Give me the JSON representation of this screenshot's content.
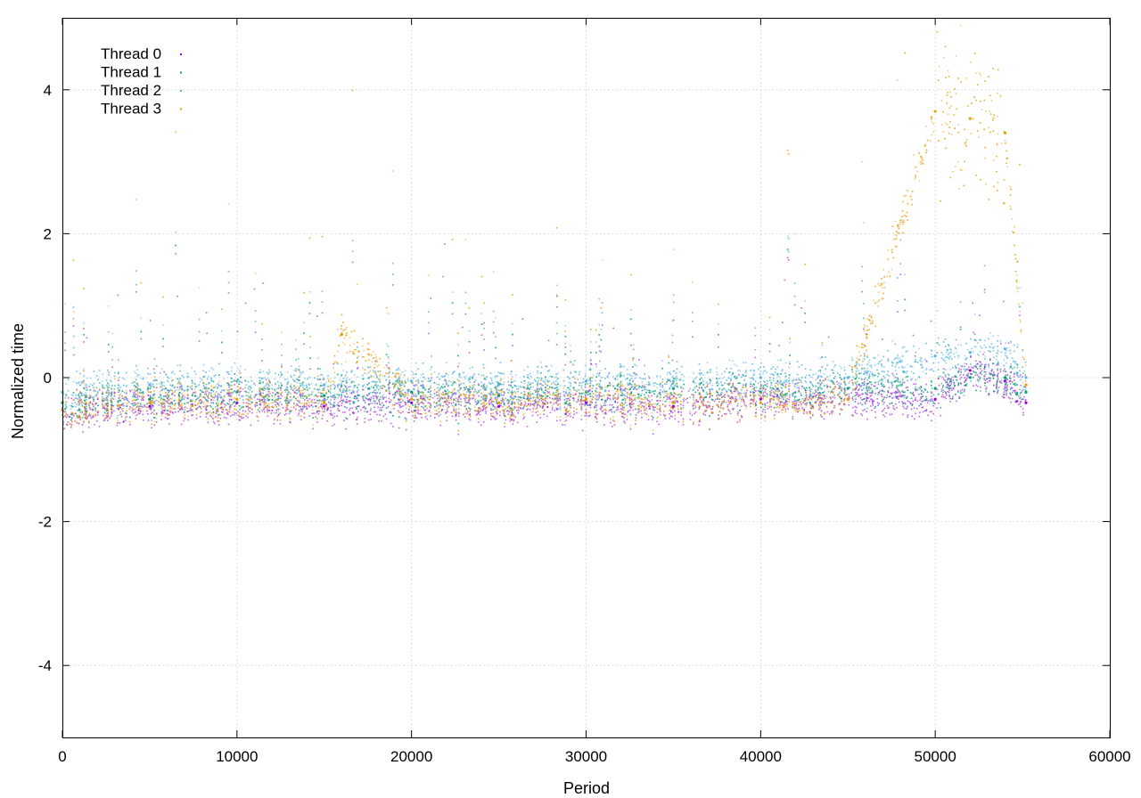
{
  "chart_data": {
    "type": "scatter",
    "title": "",
    "xlabel": "Period",
    "ylabel": "Normalized time",
    "xlim": [
      0,
      60000
    ],
    "ylim": [
      -5,
      5
    ],
    "xticks": [
      0,
      10000,
      20000,
      30000,
      40000,
      50000,
      60000
    ],
    "yticks": [
      -4,
      -2,
      0,
      2,
      4
    ],
    "xtick_labels": [
      "0",
      "10000",
      "20000",
      "30000",
      "40000",
      "50000",
      "60000"
    ],
    "ytick_labels": [
      "-4",
      "-2",
      "0",
      "2",
      "4"
    ],
    "grid": true,
    "legend_position": "top-left",
    "series": [
      {
        "name": "Thread 0",
        "color": "#9400d3",
        "x": [
          0,
          5000,
          10000,
          15000,
          20000,
          25000,
          30000,
          35000,
          40000,
          45000,
          50000,
          52000,
          54000,
          55200
        ],
        "y": [
          -0.45,
          -0.4,
          -0.35,
          -0.4,
          -0.35,
          -0.4,
          -0.35,
          -0.4,
          -0.3,
          -0.3,
          -0.3,
          0.1,
          -0.05,
          -0.35
        ]
      },
      {
        "name": "Thread 1",
        "color": "#009e73",
        "x": [
          0,
          5000,
          10000,
          15000,
          20000,
          25000,
          30000,
          35000,
          40000,
          45000,
          50000,
          52000,
          54000,
          55200
        ],
        "y": [
          -0.35,
          -0.3,
          -0.2,
          -0.25,
          -0.2,
          -0.25,
          -0.2,
          -0.15,
          -0.2,
          -0.15,
          -0.15,
          0.0,
          0.0,
          -0.2
        ]
      },
      {
        "name": "Thread 2",
        "color": "#56b4e9",
        "x": [
          0,
          5000,
          10000,
          15000,
          20000,
          25000,
          30000,
          35000,
          40000,
          45000,
          50000,
          52000,
          54000,
          55200
        ],
        "y": [
          -0.2,
          -0.1,
          -0.05,
          -0.1,
          -0.05,
          -0.1,
          -0.05,
          -0.05,
          0.0,
          0.0,
          0.3,
          0.35,
          0.4,
          0.0
        ]
      },
      {
        "name": "Thread 3",
        "color": "#e69f00",
        "x": [
          0,
          5000,
          10000,
          15000,
          16000,
          20000,
          25000,
          30000,
          35000,
          40000,
          45000,
          50000,
          52000,
          54000,
          55200
        ],
        "y": [
          -0.45,
          -0.35,
          -0.3,
          -0.35,
          0.6,
          -0.3,
          -0.35,
          -0.3,
          -0.35,
          -0.35,
          -0.3,
          3.7,
          3.6,
          3.4,
          -0.1
        ]
      }
    ]
  }
}
